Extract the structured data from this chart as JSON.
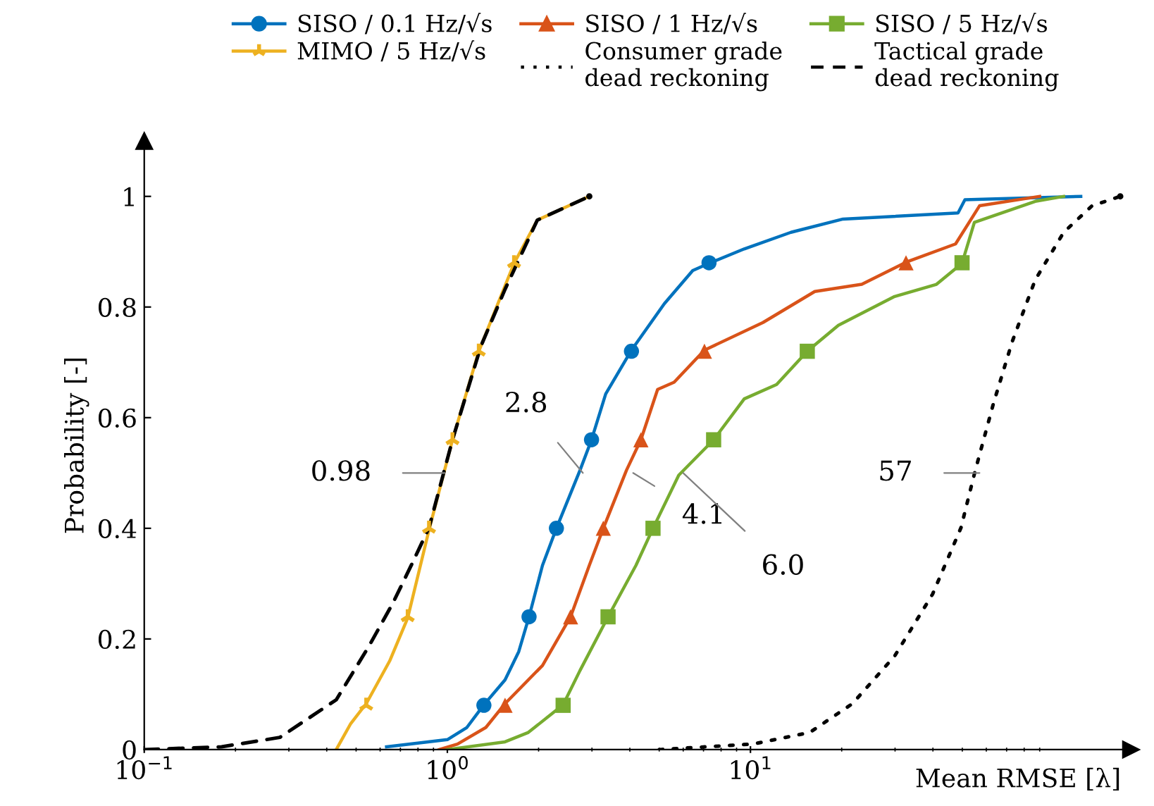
{
  "chart_data": {
    "type": "line",
    "xlabel": "Mean RMSE [λ]",
    "ylabel": "Probability [-]",
    "log": "x",
    "xlim": [
      0.1,
      180
    ],
    "xticks": [
      {
        "value": 0.1,
        "label": "10$^{−1}$"
      },
      {
        "value": 1,
        "label": "10$^{0}$"
      },
      {
        "value": 10,
        "label": "10$^{1}$"
      }
    ],
    "ylim": [
      0,
      1.1
    ],
    "yticks": [
      0,
      0.2,
      0.4,
      0.6,
      0.8,
      1
    ],
    "grid": false,
    "legend": "top",
    "series": [
      {
        "name": "SISO / 0.1 Hz/√s",
        "color": "#0072bd",
        "line_style": "solid",
        "x": [
          0.63,
          1.0,
          1.16,
          1.32,
          1.55,
          1.72,
          1.86,
          2.06,
          2.29,
          2.74,
          2.99,
          3.33,
          4.05,
          5.2,
          6.45,
          7.3,
          9.54,
          13.6,
          20.2,
          48.4,
          51,
          123
        ],
        "values": [
          0.005,
          0.018,
          0.04,
          0.081,
          0.126,
          0.177,
          0.24,
          0.333,
          0.4,
          0.505,
          0.56,
          0.643,
          0.722,
          0.806,
          0.866,
          0.879,
          0.905,
          0.935,
          0.959,
          0.97,
          0.994,
          1.0
        ]
      },
      {
        "name": "SISO / 1 Hz/√s",
        "color": "#d95319",
        "line_style": "solid",
        "x": [
          0.94,
          1.08,
          1.34,
          1.55,
          2.06,
          2.55,
          2.94,
          3.27,
          3.9,
          4.35,
          4.94,
          5.6,
          7.05,
          11,
          16.3,
          23.3,
          32.6,
          47.5,
          57,
          90
        ],
        "values": [
          0,
          0.01,
          0.04,
          0.083,
          0.152,
          0.24,
          0.333,
          0.4,
          0.505,
          0.56,
          0.651,
          0.664,
          0.722,
          0.772,
          0.828,
          0.841,
          0.881,
          0.914,
          0.983,
          1.0
        ]
      },
      {
        "name": "SISO / 5 Hz/√s",
        "color": "#77ac30",
        "line_style": "solid",
        "x": [
          1.0,
          1.55,
          1.85,
          2.41,
          2.74,
          3.39,
          4.19,
          4.77,
          5.8,
          7.56,
          9.54,
          12.2,
          15.4,
          19.5,
          29.9,
          41.1,
          49.9,
          54.8,
          87,
          108
        ],
        "values": [
          0,
          0.014,
          0.031,
          0.081,
          0.143,
          0.24,
          0.333,
          0.4,
          0.496,
          0.56,
          0.634,
          0.66,
          0.72,
          0.767,
          0.819,
          0.841,
          0.879,
          0.953,
          0.991,
          1.0
        ]
      },
      {
        "name": "MIMO / 5 Hz/√s",
        "color": "#edb120",
        "line_style": "solid",
        "x": [
          0.43,
          0.48,
          0.54,
          0.645,
          0.74,
          0.87,
          1.04,
          1.27,
          1.66,
          1.98,
          2.94
        ],
        "values": [
          0,
          0.047,
          0.083,
          0.16,
          0.238,
          0.397,
          0.56,
          0.72,
          0.879,
          0.957,
          1.0
        ]
      },
      {
        "name": "Consumer grade\ndead reckoning",
        "color": "#000000",
        "marker": "none",
        "line_style": "dotted",
        "x": [
          5.0,
          10.2,
          15.7,
          21.7,
          29.9,
          39.9,
          49.5,
          54.9,
          63.3,
          73,
          87,
          108,
          134,
          166
        ],
        "values": [
          0,
          0.01,
          0.031,
          0.083,
          0.169,
          0.281,
          0.401,
          0.5,
          0.625,
          0.737,
          0.849,
          0.935,
          0.983,
          1.0
        ]
      },
      {
        "name": "Tactical grade\ndead reckoning",
        "color": "#000000",
        "marker": "none",
        "line_style": "dashed",
        "x": [
          0.1,
          0.18,
          0.28,
          0.43,
          0.55,
          0.66,
          0.76,
          0.87,
          1.04,
          1.29,
          1.55,
          1.98,
          2.94
        ],
        "values": [
          0,
          0.005,
          0.022,
          0.09,
          0.186,
          0.264,
          0.333,
          0.401,
          0.56,
          0.729,
          0.832,
          0.957,
          1.0
        ]
      },
      {
        "type": "scatter",
        "color": "#0072bd",
        "marker": "circle",
        "x": [
          1.32,
          1.86,
          2.29,
          2.99,
          4.05,
          7.3
        ],
        "values": [
          0.08,
          0.24,
          0.4,
          0.56,
          0.72,
          0.88
        ]
      },
      {
        "type": "scatter",
        "color": "#d95319",
        "marker": "triangle",
        "x": [
          1.55,
          2.55,
          3.27,
          4.35,
          7.05,
          32.6
        ],
        "values": [
          0.08,
          0.24,
          0.4,
          0.56,
          0.72,
          0.88
        ]
      },
      {
        "type": "scatter",
        "color": "#77ac30",
        "marker": "square",
        "x": [
          2.41,
          3.39,
          4.77,
          7.56,
          15.4,
          49.9
        ],
        "values": [
          0.08,
          0.24,
          0.4,
          0.56,
          0.72,
          0.88
        ]
      },
      {
        "type": "scatter",
        "color": "#edb120",
        "marker": "cross",
        "x": [
          0.54,
          0.74,
          0.87,
          1.04,
          1.27,
          1.66
        ],
        "values": [
          0.08,
          0.24,
          0.4,
          0.56,
          0.72,
          0.88
        ]
      }
    ],
    "annotations": [
      {
        "text": "0.98",
        "x": 0.98,
        "y": 0.5
      },
      {
        "text": "2.8",
        "x": 2.8,
        "y": 0.5
      },
      {
        "text": "4.1",
        "x": 4.1,
        "y": 0.5
      },
      {
        "text": "6.0",
        "x": 6.0,
        "y": 0.5
      },
      {
        "text": "57",
        "x": 57,
        "y": 0.5
      }
    ]
  }
}
